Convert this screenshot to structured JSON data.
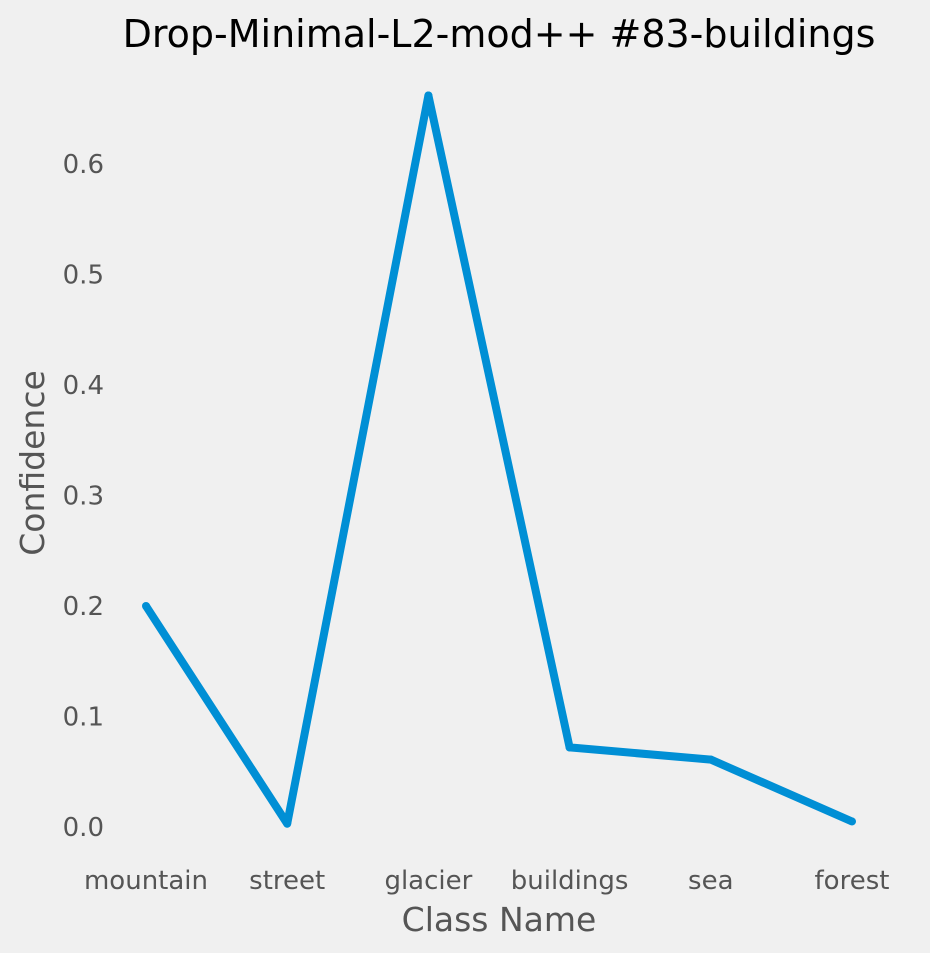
{
  "chart_data": {
    "type": "line",
    "title": "Drop-Minimal-L2-mod++ #83-buildings",
    "xlabel": "Class Name",
    "ylabel": "Confidence",
    "categories": [
      "mountain",
      "street",
      "glacier",
      "buildings",
      "sea",
      "forest"
    ],
    "series": [
      {
        "values": [
          0.2,
          0.003,
          0.662,
          0.072,
          0.061,
          0.005
        ]
      }
    ],
    "ylim": [
      -0.02,
      0.7
    ],
    "yticks": [
      "0.0",
      "0.1",
      "0.2",
      "0.3",
      "0.4",
      "0.5",
      "0.6"
    ],
    "grid": false,
    "line_color": "#008fd5",
    "background": "#f0f0f0"
  }
}
